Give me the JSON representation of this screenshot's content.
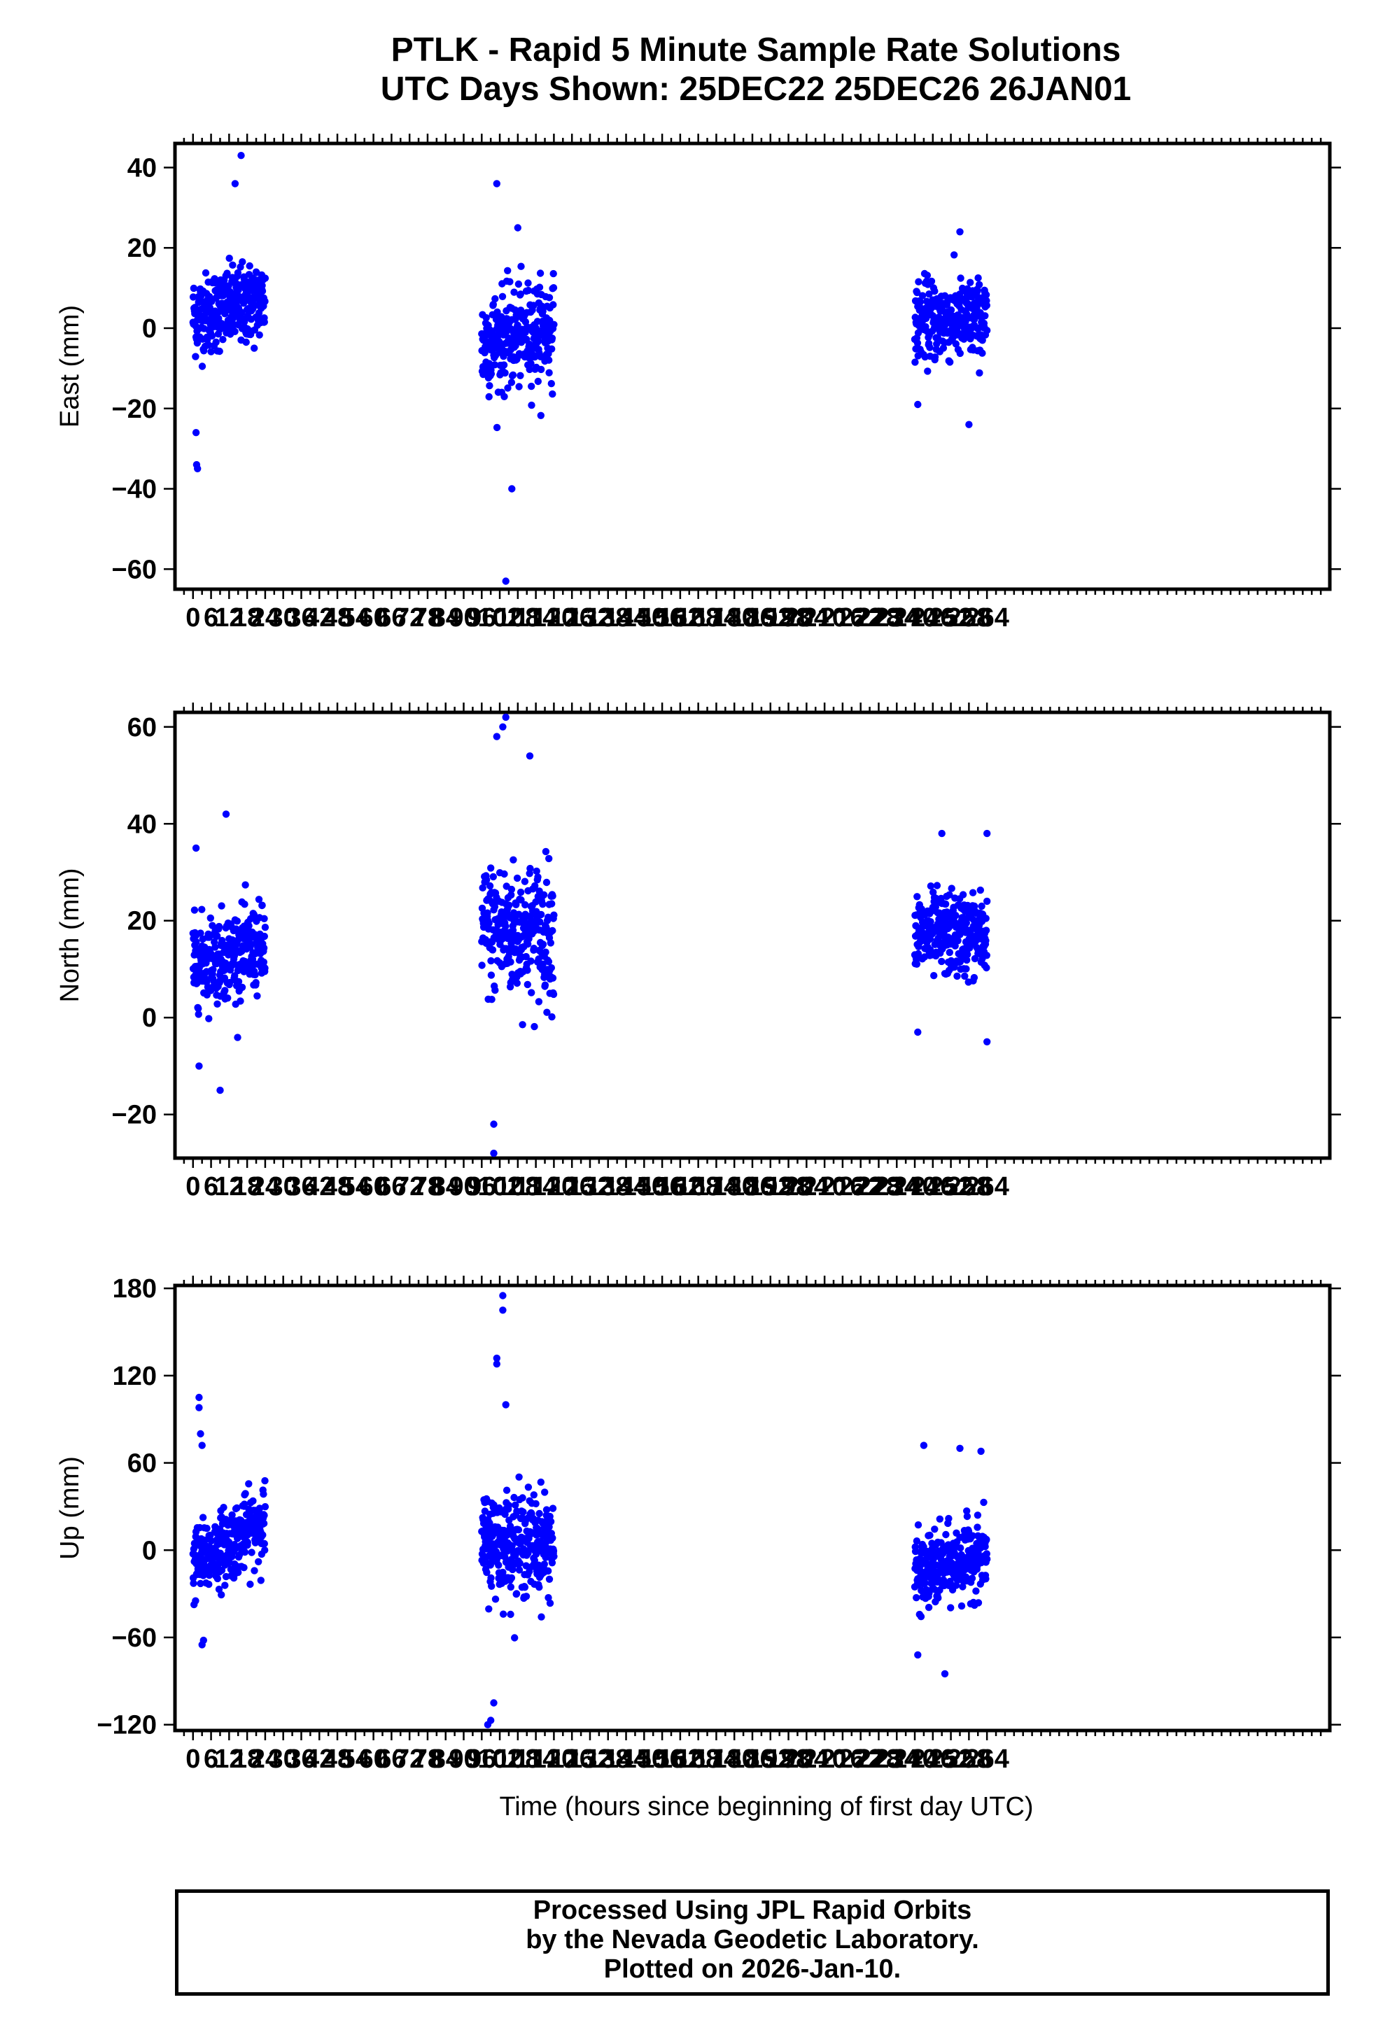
{
  "title": {
    "line1": "PTLK - Rapid 5 Minute Sample Rate Solutions",
    "line2": "UTC Days Shown:  25DEC22 25DEC26 26JAN01"
  },
  "footer": {
    "line1": "Processed Using JPL Rapid Orbits",
    "line2": "by the Nevada Geodetic Laboratory.",
    "line3": "Plotted on 2026-Jan-10."
  },
  "colors": {
    "points": "#0000ff",
    "axes": "#000000",
    "background": "#ffffff"
  },
  "chart_data": [
    {
      "type": "scatter",
      "ylabel": "East (mm)",
      "xlabel": "",
      "xlim": [
        -6,
        378
      ],
      "ylim": [
        -65,
        46
      ],
      "yticks": [
        40,
        20,
        0,
        -20,
        -40,
        -60
      ],
      "ytick_labels": [
        "40",
        "20",
        "0",
        "−20",
        "−40",
        "−60"
      ],
      "xtick_labels": [
        "0",
        "6",
        "12",
        "18",
        "24",
        "30",
        "36",
        "42",
        "48",
        "54",
        "60",
        "66",
        "72",
        "78",
        "84",
        "90",
        "96",
        "102",
        "108",
        "114",
        "120",
        "126",
        "132",
        "138",
        "144",
        "150",
        "156",
        "162",
        "168",
        "174",
        "180",
        "186",
        "192",
        "198",
        "204",
        "210",
        "216",
        "222",
        "228",
        "234",
        "240",
        "246",
        "252",
        "258",
        "264"
      ],
      "series": [
        {
          "segment": "25DEC22",
          "x_range": [
            0,
            24
          ],
          "center": 5,
          "trend": 4,
          "spread": 8,
          "extremes": [
            [
              1.5,
              -35
            ],
            [
              1.2,
              -34
            ],
            [
              1,
              -26
            ],
            [
              16,
              43
            ],
            [
              14,
              36
            ]
          ]
        },
        {
          "segment": "25DEC26",
          "x_range": [
            96,
            120
          ],
          "center": -2,
          "trend": 4,
          "spread": 10,
          "extremes": [
            [
              104,
              -63
            ],
            [
              106,
              -40
            ],
            [
              101,
              36
            ],
            [
              108,
              25
            ]
          ]
        },
        {
          "segment": "26JAN01",
          "x_range": [
            240,
            264
          ],
          "center": 2,
          "trend": 0,
          "spread": 8,
          "extremes": [
            [
              258,
              -24
            ],
            [
              255,
              24
            ],
            [
              241,
              -19
            ]
          ]
        }
      ]
    },
    {
      "type": "scatter",
      "ylabel": "North (mm)",
      "xlabel": "",
      "xlim": [
        -6,
        378
      ],
      "ylim": [
        -29,
        63
      ],
      "yticks": [
        60,
        40,
        20,
        0,
        -20
      ],
      "ytick_labels": [
        "60",
        "40",
        "20",
        "0",
        "−20"
      ],
      "xtick_labels": [
        "0",
        "6",
        "12",
        "18",
        "24",
        "30",
        "36",
        "42",
        "48",
        "54",
        "60",
        "66",
        "72",
        "78",
        "84",
        "90",
        "96",
        "102",
        "108",
        "114",
        "120",
        "126",
        "132",
        "138",
        "144",
        "150",
        "156",
        "162",
        "168",
        "174",
        "180",
        "186",
        "192",
        "198",
        "204",
        "210",
        "216",
        "222",
        "228",
        "234",
        "240",
        "246",
        "252",
        "258",
        "264"
      ],
      "series": [
        {
          "segment": "25DEC22",
          "x_range": [
            0,
            24
          ],
          "center": 13,
          "trend": 3,
          "spread": 7,
          "extremes": [
            [
              9,
              -15
            ],
            [
              2,
              -10
            ],
            [
              11,
              42
            ],
            [
              1,
              35
            ]
          ]
        },
        {
          "segment": "25DEC26",
          "x_range": [
            96,
            120
          ],
          "center": 18,
          "trend": 0,
          "spread": 11,
          "extremes": [
            [
              100,
              -28
            ],
            [
              100,
              -22
            ],
            [
              104,
              62
            ],
            [
              103,
              60
            ],
            [
              101,
              58
            ],
            [
              112,
              54
            ]
          ]
        },
        {
          "segment": "26JAN01",
          "x_range": [
            240,
            264
          ],
          "center": 17,
          "trend": 0,
          "spread": 7,
          "extremes": [
            [
              264,
              -5
            ],
            [
              241,
              -3
            ],
            [
              264,
              38
            ],
            [
              249,
              38
            ]
          ]
        }
      ]
    },
    {
      "type": "scatter",
      "ylabel": "Up (mm)",
      "xlabel": "Time (hours since beginning of first day UTC)",
      "xlim": [
        -6,
        378
      ],
      "ylim": [
        -124,
        182
      ],
      "yticks": [
        180,
        120,
        60,
        0,
        -60,
        -120
      ],
      "ytick_labels": [
        "180",
        "120",
        "60",
        "0",
        "−60",
        "−120"
      ],
      "xtick_labels": [
        "0",
        "6",
        "12",
        "18",
        "24",
        "30",
        "36",
        "42",
        "48",
        "54",
        "60",
        "66",
        "72",
        "78",
        "84",
        "90",
        "96",
        "102",
        "108",
        "114",
        "120",
        "126",
        "132",
        "138",
        "144",
        "150",
        "156",
        "162",
        "168",
        "174",
        "180",
        "186",
        "192",
        "198",
        "204",
        "210",
        "216",
        "222",
        "228",
        "234",
        "240",
        "246",
        "252",
        "258",
        "264"
      ],
      "series": [
        {
          "segment": "25DEC22",
          "x_range": [
            0,
            24
          ],
          "center": 5,
          "trend": 30,
          "spread": 20,
          "extremes": [
            [
              3,
              -65
            ],
            [
              3.5,
              -62
            ],
            [
              2,
              105
            ],
            [
              2,
              98
            ],
            [
              2.5,
              80
            ],
            [
              3,
              72
            ]
          ]
        },
        {
          "segment": "25DEC26",
          "x_range": [
            96,
            120
          ],
          "center": 5,
          "trend": 0,
          "spread": 28,
          "extremes": [
            [
              98,
              -120
            ],
            [
              99,
              -117
            ],
            [
              100,
              -105
            ],
            [
              103,
              175
            ],
            [
              103,
              165
            ],
            [
              101,
              132
            ],
            [
              101,
              128
            ],
            [
              104,
              100
            ]
          ]
        },
        {
          "segment": "26JAN01",
          "x_range": [
            240,
            264
          ],
          "center": -10,
          "trend": 15,
          "spread": 20,
          "extremes": [
            [
              250,
              -85
            ],
            [
              241,
              -72
            ],
            [
              262,
              68
            ],
            [
              243,
              72
            ],
            [
              255,
              70
            ]
          ]
        }
      ]
    }
  ]
}
